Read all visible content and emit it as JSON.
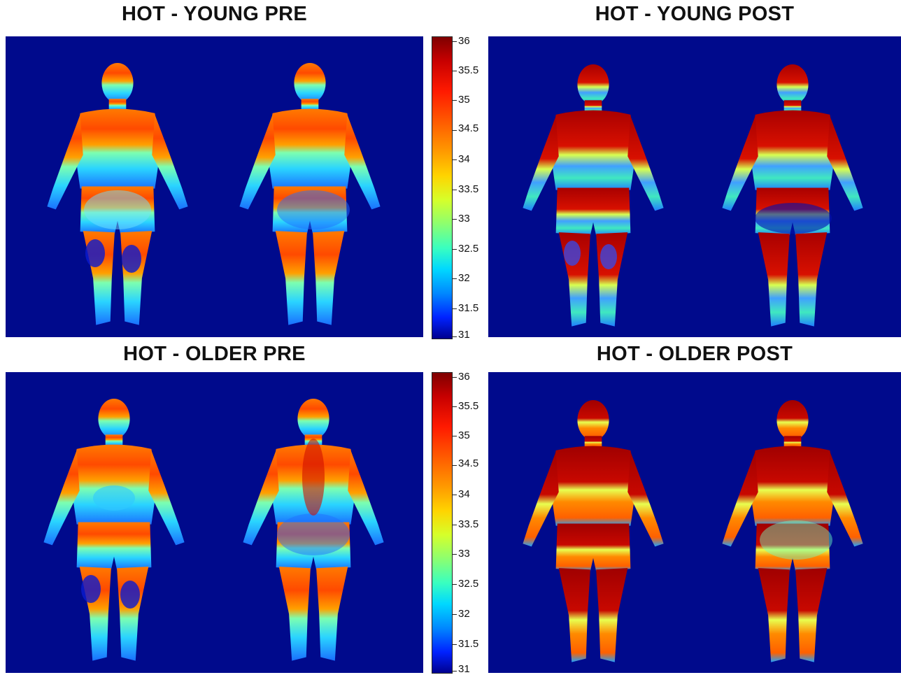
{
  "figure": {
    "panels": [
      {
        "title": "HOT - YOUNG PRE"
      },
      {
        "title": "HOT - YOUNG POST"
      },
      {
        "title": "HOT - OLDER PRE"
      },
      {
        "title": "HOT - OLDER POST"
      }
    ],
    "colorbar": {
      "ticks": [
        "36",
        "35.5",
        "35",
        "34.5",
        "34",
        "33.5",
        "33",
        "32.5",
        "32",
        "31.5",
        "31"
      ],
      "min": 31,
      "max": 36
    },
    "colors": {
      "background": "#000a8c",
      "colormap": [
        "#7f0000",
        "#ff1a00",
        "#ff9a00",
        "#ffd400",
        "#8cff70",
        "#00d8ff",
        "#0022ff",
        "#00008f"
      ]
    }
  }
}
